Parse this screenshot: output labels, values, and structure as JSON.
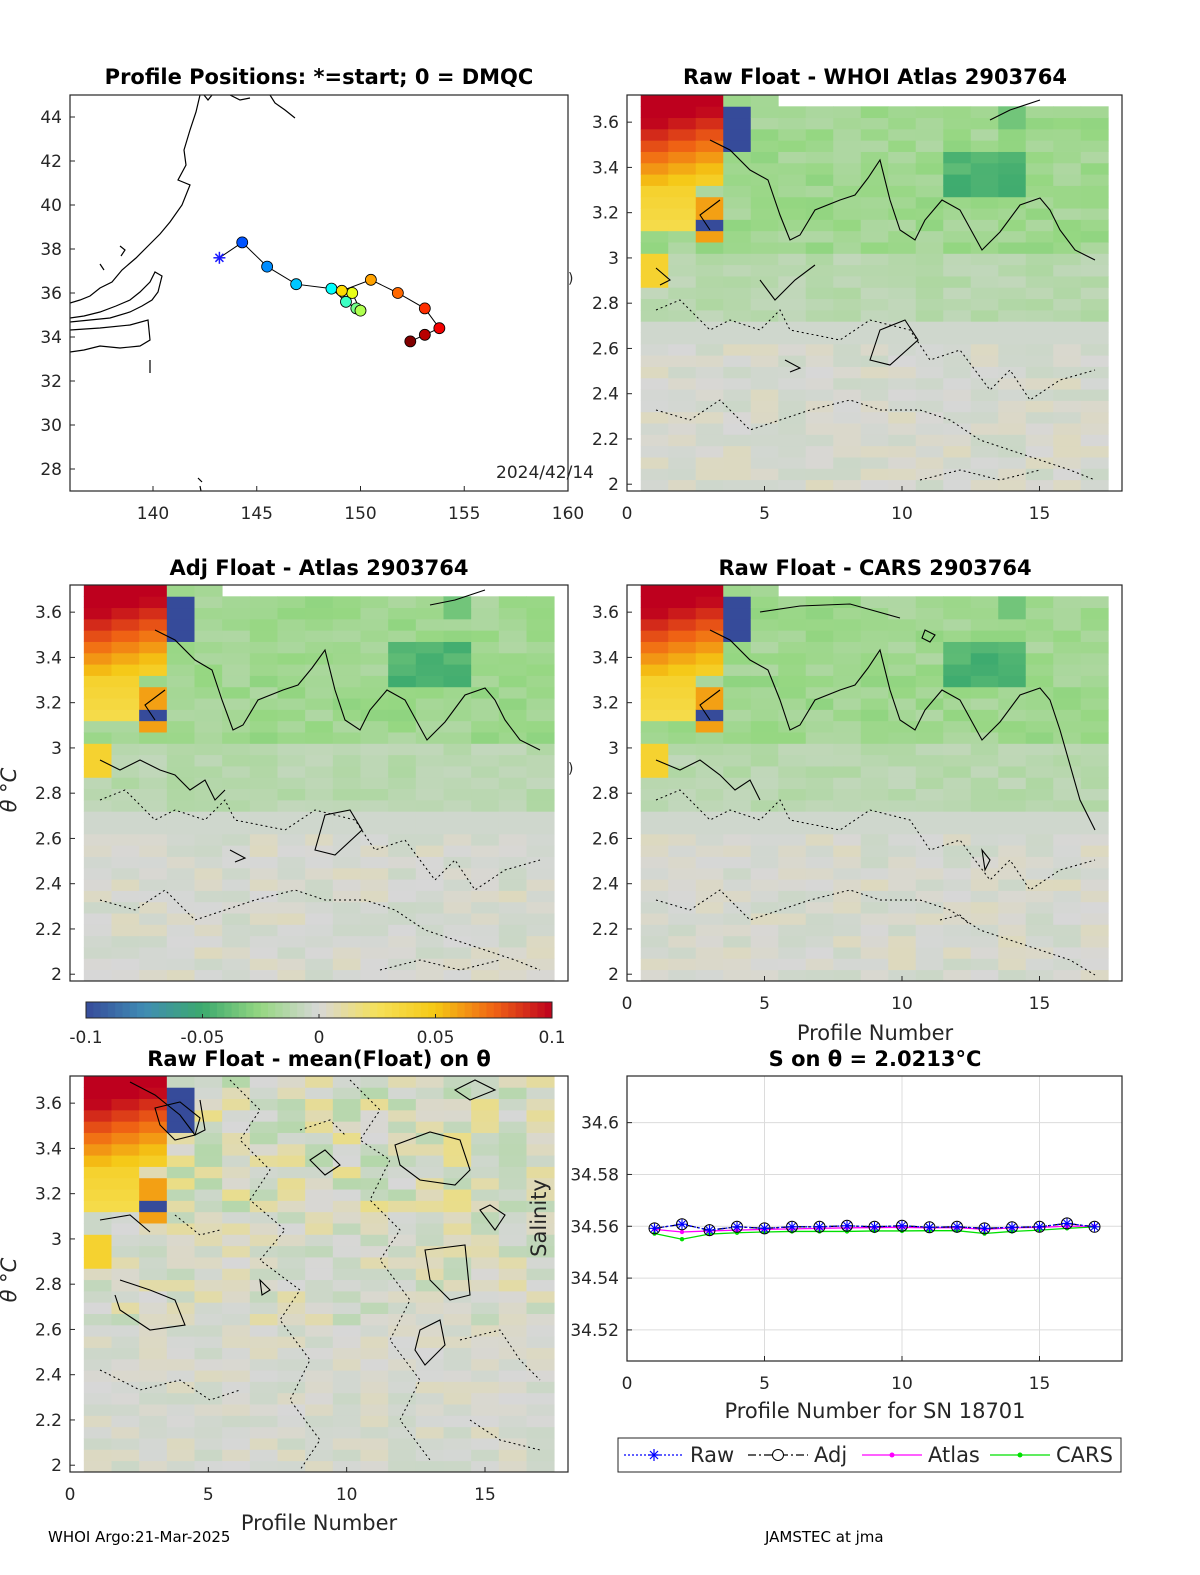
{
  "chart_data": [
    {
      "type": "scatter",
      "title": "Profile Positions: *=start; 0 = DMQC",
      "xlim": [
        136,
        160
      ],
      "ylim": [
        27,
        45
      ],
      "xticks": [
        "140",
        "145",
        "150",
        "155",
        "160"
      ],
      "yticks": [
        "28",
        "30",
        "32",
        "34",
        "36",
        "38",
        "40",
        "42",
        "44"
      ],
      "date_label": "2024/42/14",
      "points": [
        {
          "lon": 143.2,
          "lat": 37.6,
          "start": true
        },
        {
          "lon": 144.3,
          "lat": 38.3
        },
        {
          "lon": 145.5,
          "lat": 37.2
        },
        {
          "lon": 146.9,
          "lat": 36.4
        },
        {
          "lon": 148.6,
          "lat": 36.2
        },
        {
          "lon": 149.3,
          "lat": 35.6
        },
        {
          "lon": 149.8,
          "lat": 35.3
        },
        {
          "lon": 150.0,
          "lat": 35.2
        },
        {
          "lon": 149.6,
          "lat": 36.0
        },
        {
          "lon": 149.1,
          "lat": 36.1
        },
        {
          "lon": 150.5,
          "lat": 36.6
        },
        {
          "lon": 151.8,
          "lat": 36.0
        },
        {
          "lon": 153.1,
          "lat": 35.3
        },
        {
          "lon": 153.8,
          "lat": 34.4
        },
        {
          "lon": 153.1,
          "lat": 34.1
        },
        {
          "lon": 152.4,
          "lat": 33.8
        }
      ]
    },
    {
      "type": "heatmap",
      "title": "Raw Float - WHOI Atlas  2903764",
      "xlim": [
        0,
        18
      ],
      "ylim": [
        1.97,
        3.72
      ],
      "xticks": [
        "0",
        "5",
        "10",
        "15"
      ],
      "yticks": [
        "2",
        "2.2",
        "2.4",
        "2.6",
        "2.8",
        "3",
        "3.2",
        "3.4",
        "3.6"
      ],
      "xlabel": "",
      "ylabel": ""
    },
    {
      "type": "heatmap",
      "title": "Adj Float - Atlas  2903764",
      "xlim": [
        0,
        18
      ],
      "ylim": [
        1.97,
        3.72
      ],
      "xticks": [],
      "yticks": [
        "2",
        "2.2",
        "2.4",
        "2.6",
        "2.8",
        "3",
        "3.2",
        "3.4",
        "3.6"
      ],
      "xlabel": "",
      "ylabel": "θ °C"
    },
    {
      "type": "heatmap",
      "title": "Raw Float - CARS  2903764",
      "xlim": [
        0,
        18
      ],
      "ylim": [
        1.97,
        3.72
      ],
      "xticks": [
        "0",
        "5",
        "10",
        "15"
      ],
      "yticks": [
        "2",
        "2.2",
        "2.4",
        "2.6",
        "2.8",
        "3",
        "3.2",
        "3.4",
        "3.6"
      ],
      "xlabel": "Profile Number",
      "ylabel": ""
    },
    {
      "type": "heatmap",
      "title": "Raw Float - mean(Float) on θ",
      "xlim": [
        0,
        18
      ],
      "ylim": [
        1.97,
        3.72
      ],
      "xticks": [
        "0",
        "5",
        "10",
        "15"
      ],
      "yticks": [
        "2",
        "2.2",
        "2.4",
        "2.6",
        "2.8",
        "3",
        "3.2",
        "3.4",
        "3.6"
      ],
      "xlabel": "Profile Number",
      "ylabel": "θ °C"
    },
    {
      "type": "line",
      "title": "S on θ = 2.0213°C",
      "xlabel": "Profile Number for SN 18701",
      "ylabel": "Salinity",
      "xlim": [
        0,
        18
      ],
      "ylim": [
        34.508,
        34.618
      ],
      "xticks": [
        "0",
        "5",
        "10",
        "15"
      ],
      "yticks": [
        "34.52",
        "34.54",
        "34.56",
        "34.58",
        "34.6"
      ],
      "x": [
        1,
        2,
        3,
        4,
        5,
        6,
        7,
        8,
        9,
        10,
        11,
        12,
        13,
        14,
        15,
        16,
        17
      ],
      "series": [
        {
          "name": "Raw",
          "color": "#0000ff",
          "values": [
            34.5592,
            34.5608,
            34.5585,
            34.5598,
            34.5592,
            34.5598,
            34.5598,
            34.5602,
            34.5598,
            34.5602,
            34.5596,
            34.5598,
            34.5592,
            34.5596,
            34.5598,
            34.5611,
            34.5598
          ]
        },
        {
          "name": "Adj",
          "color": "#000000",
          "values": [
            34.5592,
            34.5608,
            34.5585,
            34.5598,
            34.5592,
            34.5598,
            34.5598,
            34.5602,
            34.5598,
            34.5602,
            34.5596,
            34.5598,
            34.5592,
            34.5596,
            34.5598,
            34.5611,
            34.5598
          ]
        },
        {
          "name": "Atlas",
          "color": "#ff00ff",
          "values": [
            34.5588,
            34.5578,
            34.5582,
            34.5585,
            34.5588,
            34.559,
            34.5592,
            34.5594,
            34.5595,
            34.5596,
            34.5594,
            34.5595,
            34.5588,
            34.5594,
            34.5596,
            34.56,
            34.56
          ]
        },
        {
          "name": "CARS",
          "color": "#00e000",
          "values": [
            34.5572,
            34.555,
            34.557,
            34.5575,
            34.5578,
            34.558,
            34.558,
            34.558,
            34.5582,
            34.5582,
            34.5583,
            34.5583,
            34.5572,
            34.558,
            34.5585,
            34.5592,
            34.5598
          ]
        }
      ]
    }
  ],
  "colorbar": {
    "ticks": [
      "-0.1",
      "-0.05",
      "0",
      "0.05",
      "0.1"
    ]
  },
  "footer": {
    "left": "WHOI Argo:21-Mar-2025",
    "right": "JAMSTEC at jma"
  }
}
